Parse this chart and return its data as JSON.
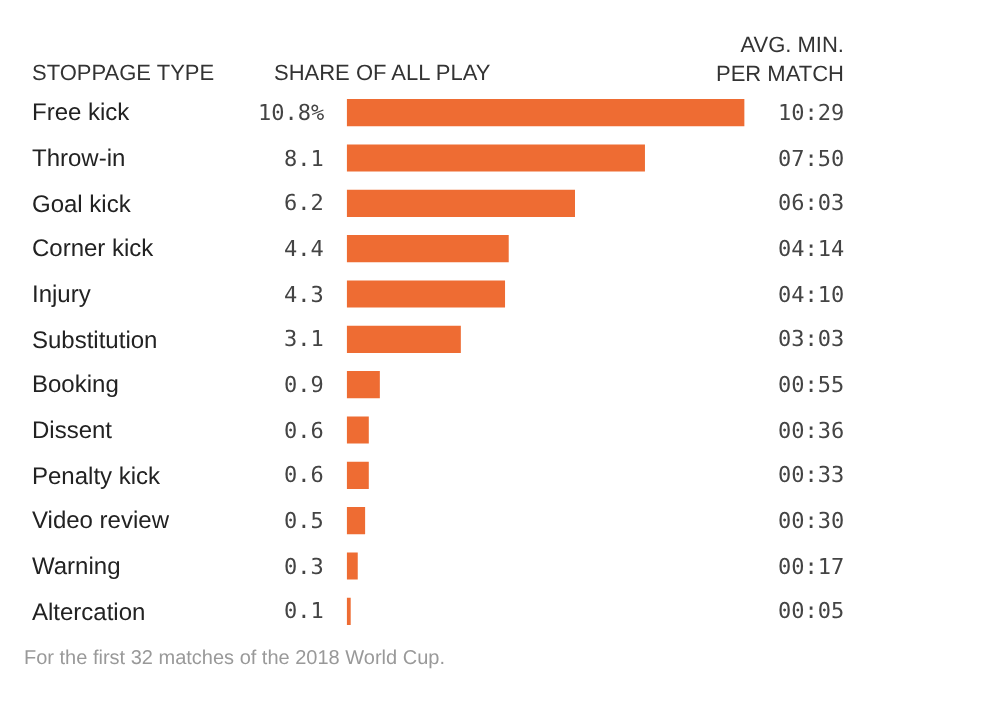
{
  "chart_data": {
    "type": "bar",
    "orientation": "horizontal",
    "xlabel": "SHARE OF ALL PLAY",
    "ylabel": "STOPPAGE TYPE",
    "categories": [
      "Free kick",
      "Throw-in",
      "Goal kick",
      "Corner kick",
      "Injury",
      "Substitution",
      "Booking",
      "Dissent",
      "Penalty kick",
      "Video review",
      "Warning",
      "Altercation"
    ],
    "values": [
      10.8,
      8.1,
      6.2,
      4.4,
      4.3,
      3.1,
      0.9,
      0.6,
      0.6,
      0.5,
      0.3,
      0.1
    ],
    "value_labels": [
      "10.8%",
      "8.1",
      "6.2",
      "4.4",
      "4.3",
      "3.1",
      "0.9",
      "0.6",
      "0.6",
      "0.5",
      "0.3",
      "0.1"
    ],
    "color": "#ee6c33",
    "annotations": [
      "AVG. MIN.\nPER MATCH",
      "10:29",
      "07:50",
      "06:03",
      "04:14",
      "04:10",
      "03:03",
      "00:55",
      "00:36",
      "00:33",
      "00:30",
      "00:17",
      "00:05",
      "For the first 32 matches of the 2018 World Cup."
    ],
    "legend": false
  }
}
